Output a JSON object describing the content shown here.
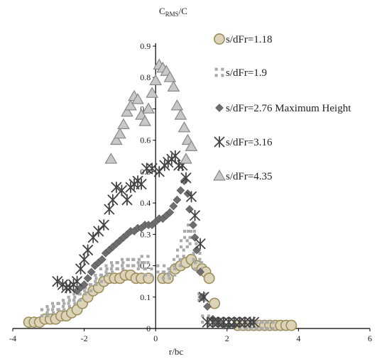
{
  "chart_data": {
    "type": "scatter",
    "title": "",
    "ylabel_main": "C",
    "ylabel_sub": "RMS",
    "ylabel_tail": "/C",
    "xlabel": "r/bc",
    "xlim": [
      -4,
      6
    ],
    "ylim": [
      0,
      0.9
    ],
    "x_ticks": [
      -4,
      -2,
      0,
      2,
      4,
      6
    ],
    "x_tick_labels": [
      "-4",
      "-2",
      "0",
      "2",
      "4",
      "6"
    ],
    "y_ticks": [
      0,
      0.1,
      0.2,
      0.3,
      0.4,
      0.5,
      0.6,
      0.7,
      0.8,
      0.9
    ],
    "y_tick_labels": [
      "0",
      "0.1",
      "0.2",
      "0.3",
      "0.4",
      "0.5",
      "0.6",
      "0.7",
      "0.8",
      "0.9"
    ],
    "grid": false,
    "legend_position": "right",
    "series": [
      {
        "name": "s/dFr=1.18",
        "marker": "circle",
        "fill": "#ddd3b8",
        "stroke": "#9b8f5c",
        "points": [
          [
            -3.55,
            0.02
          ],
          [
            -3.4,
            0.02
          ],
          [
            -3.25,
            0.02
          ],
          [
            -3.1,
            0.03
          ],
          [
            -2.95,
            0.03
          ],
          [
            -2.8,
            0.03
          ],
          [
            -2.65,
            0.04
          ],
          [
            -2.5,
            0.04
          ],
          [
            -2.35,
            0.05
          ],
          [
            -2.2,
            0.06
          ],
          [
            -2.05,
            0.08
          ],
          [
            -1.9,
            0.1
          ],
          [
            -1.75,
            0.12
          ],
          [
            -1.6,
            0.13
          ],
          [
            -1.45,
            0.15
          ],
          [
            -1.3,
            0.16
          ],
          [
            -1.15,
            0.16
          ],
          [
            -1.0,
            0.16
          ],
          [
            -0.85,
            0.17
          ],
          [
            -0.7,
            0.17
          ],
          [
            -0.55,
            0.16
          ],
          [
            -0.4,
            0.16
          ],
          [
            -0.2,
            0.16
          ],
          [
            0.2,
            0.16
          ],
          [
            0.35,
            0.16
          ],
          [
            0.55,
            0.19
          ],
          [
            0.7,
            0.2
          ],
          [
            0.85,
            0.21
          ],
          [
            1.0,
            0.22
          ],
          [
            1.15,
            0.2
          ],
          [
            1.3,
            0.19
          ],
          [
            1.4,
            0.18
          ],
          [
            1.5,
            0.16
          ],
          [
            1.65,
            0.08
          ],
          [
            2.3,
            0.01
          ],
          [
            2.45,
            0.01
          ],
          [
            2.6,
            0.01
          ],
          [
            2.75,
            0.01
          ],
          [
            2.9,
            0.01
          ],
          [
            3.05,
            0.01
          ],
          [
            3.2,
            0.01
          ],
          [
            3.35,
            0.01
          ],
          [
            3.5,
            0.01
          ],
          [
            3.65,
            0.01
          ],
          [
            3.8,
            0.01
          ]
        ]
      },
      {
        "name": "s/dFr=1.9",
        "marker": "square",
        "fill": "#aaaaaa",
        "stroke": "#aaaaaa",
        "points": [
          [
            -3.1,
            0.05
          ],
          [
            -2.95,
            0.06
          ],
          [
            -2.8,
            0.07
          ],
          [
            -2.65,
            0.07
          ],
          [
            -2.5,
            0.08
          ],
          [
            -2.35,
            0.09
          ],
          [
            -2.2,
            0.1
          ],
          [
            -2.05,
            0.12
          ],
          [
            -1.9,
            0.13
          ],
          [
            -1.75,
            0.15
          ],
          [
            -1.6,
            0.16
          ],
          [
            -1.45,
            0.18
          ],
          [
            -1.3,
            0.19
          ],
          [
            -1.15,
            0.2
          ],
          [
            -1.0,
            0.2
          ],
          [
            -0.85,
            0.21
          ],
          [
            -0.7,
            0.21
          ],
          [
            -0.55,
            0.21
          ],
          [
            -0.4,
            0.2
          ],
          [
            -0.3,
            0.22
          ],
          [
            -0.2,
            0.18
          ],
          [
            0.15,
            0.19
          ],
          [
            0.3,
            0.17
          ],
          [
            0.45,
            0.18
          ],
          [
            0.6,
            0.21
          ],
          [
            0.7,
            0.24
          ],
          [
            0.8,
            0.27
          ],
          [
            0.9,
            0.3
          ],
          [
            1.0,
            0.32
          ],
          [
            1.05,
            0.28
          ],
          [
            1.15,
            0.23
          ],
          [
            1.2,
            0.2
          ],
          [
            1.3,
            0.1
          ],
          [
            1.4,
            0.03
          ],
          [
            1.55,
            0.02
          ],
          [
            1.7,
            0.02
          ],
          [
            1.85,
            0.02
          ],
          [
            2.0,
            0.02
          ],
          [
            2.15,
            0.02
          ],
          [
            2.3,
            0.02
          ],
          [
            2.45,
            0.01
          ],
          [
            2.6,
            0.01
          ],
          [
            2.75,
            0.01
          ],
          [
            2.9,
            0.01
          ],
          [
            3.05,
            0.01
          ],
          [
            3.2,
            0.01
          ]
        ]
      },
      {
        "name": "s/dFr=2.76 Maximum Height",
        "marker": "diamond",
        "fill": "#6e6e6e",
        "stroke": "#555555",
        "points": [
          [
            -2.2,
            0.12
          ],
          [
            -2.1,
            0.13
          ],
          [
            -2.0,
            0.14
          ],
          [
            -1.9,
            0.16
          ],
          [
            -1.8,
            0.18
          ],
          [
            -1.7,
            0.2
          ],
          [
            -1.6,
            0.21
          ],
          [
            -1.5,
            0.22
          ],
          [
            -1.4,
            0.24
          ],
          [
            -1.3,
            0.25
          ],
          [
            -1.2,
            0.26
          ],
          [
            -1.1,
            0.27
          ],
          [
            -1.0,
            0.28
          ],
          [
            -0.9,
            0.29
          ],
          [
            -0.8,
            0.3
          ],
          [
            -0.7,
            0.31
          ],
          [
            -0.6,
            0.31
          ],
          [
            -0.5,
            0.32
          ],
          [
            -0.4,
            0.32
          ],
          [
            -0.3,
            0.33
          ],
          [
            -0.2,
            0.33
          ],
          [
            -0.1,
            0.33
          ],
          [
            0.0,
            0.34
          ],
          [
            0.1,
            0.35
          ],
          [
            0.2,
            0.35
          ],
          [
            0.3,
            0.36
          ],
          [
            0.4,
            0.37
          ],
          [
            0.5,
            0.39
          ],
          [
            0.6,
            0.41
          ],
          [
            0.7,
            0.44
          ],
          [
            0.8,
            0.47
          ],
          [
            0.9,
            0.43
          ],
          [
            0.95,
            0.38
          ],
          [
            1.05,
            0.33
          ],
          [
            1.1,
            0.29
          ],
          [
            1.15,
            0.25
          ],
          [
            1.25,
            0.18
          ],
          [
            1.3,
            0.1
          ],
          [
            1.45,
            0.07
          ],
          [
            1.6,
            0.03
          ],
          [
            1.75,
            0.02
          ],
          [
            1.9,
            0.01
          ],
          [
            2.05,
            0.01
          ],
          [
            2.2,
            0.01
          ]
        ]
      },
      {
        "name": "s/dFr=3.16",
        "marker": "asterisk",
        "fill": "#555555",
        "stroke": "#444444",
        "points": [
          [
            -2.75,
            0.15
          ],
          [
            -2.6,
            0.14
          ],
          [
            -2.5,
            0.13
          ],
          [
            -2.4,
            0.13
          ],
          [
            -2.3,
            0.14
          ],
          [
            -2.2,
            0.15
          ],
          [
            -2.1,
            0.19
          ],
          [
            -2.0,
            0.22
          ],
          [
            -1.9,
            0.25
          ],
          [
            -1.75,
            0.29
          ],
          [
            -1.6,
            0.31
          ],
          [
            -1.45,
            0.33
          ],
          [
            -1.3,
            0.38
          ],
          [
            -1.2,
            0.41
          ],
          [
            -1.1,
            0.45
          ],
          [
            -0.95,
            0.44
          ],
          [
            -0.8,
            0.41
          ],
          [
            -0.7,
            0.45
          ],
          [
            -0.6,
            0.46
          ],
          [
            -0.5,
            0.47
          ],
          [
            -0.4,
            0.46
          ],
          [
            -0.25,
            0.51
          ],
          [
            -0.1,
            0.51
          ],
          [
            0.1,
            0.5
          ],
          [
            0.25,
            0.52
          ],
          [
            0.35,
            0.53
          ],
          [
            0.45,
            0.54
          ],
          [
            0.55,
            0.55
          ],
          [
            0.65,
            0.52
          ],
          [
            0.75,
            0.52
          ],
          [
            0.85,
            0.48
          ],
          [
            1.0,
            0.42
          ],
          [
            1.1,
            0.36
          ],
          [
            1.25,
            0.27
          ],
          [
            1.35,
            0.1
          ],
          [
            1.45,
            0.02
          ],
          [
            1.6,
            0.02
          ],
          [
            1.75,
            0.02
          ],
          [
            1.9,
            0.02
          ],
          [
            2.05,
            0.02
          ],
          [
            2.2,
            0.02
          ],
          [
            2.35,
            0.02
          ],
          [
            2.5,
            0.02
          ],
          [
            2.65,
            0.02
          ],
          [
            2.75,
            0.02
          ]
        ]
      },
      {
        "name": "s/dFr=4.35",
        "marker": "triangle",
        "fill": "#c8c8c8",
        "stroke": "#888888",
        "points": [
          [
            -1.25,
            0.54
          ],
          [
            -1.1,
            0.6
          ],
          [
            -1.0,
            0.62
          ],
          [
            -0.9,
            0.65
          ],
          [
            -0.8,
            0.69
          ],
          [
            -0.7,
            0.71
          ],
          [
            -0.6,
            0.74
          ],
          [
            -0.5,
            0.73
          ],
          [
            -0.4,
            0.68
          ],
          [
            -0.3,
            0.66
          ],
          [
            -0.2,
            0.7
          ],
          [
            -0.1,
            0.75
          ],
          [
            0.0,
            0.79
          ],
          [
            0.1,
            0.84
          ],
          [
            0.2,
            0.83
          ],
          [
            0.3,
            0.82
          ],
          [
            0.4,
            0.8
          ],
          [
            0.5,
            0.77
          ],
          [
            0.6,
            0.71
          ],
          [
            0.7,
            0.68
          ],
          [
            0.8,
            0.64
          ],
          [
            0.9,
            0.6
          ],
          [
            1.0,
            0.58
          ],
          [
            0.85,
            0.54
          ]
        ]
      }
    ]
  }
}
